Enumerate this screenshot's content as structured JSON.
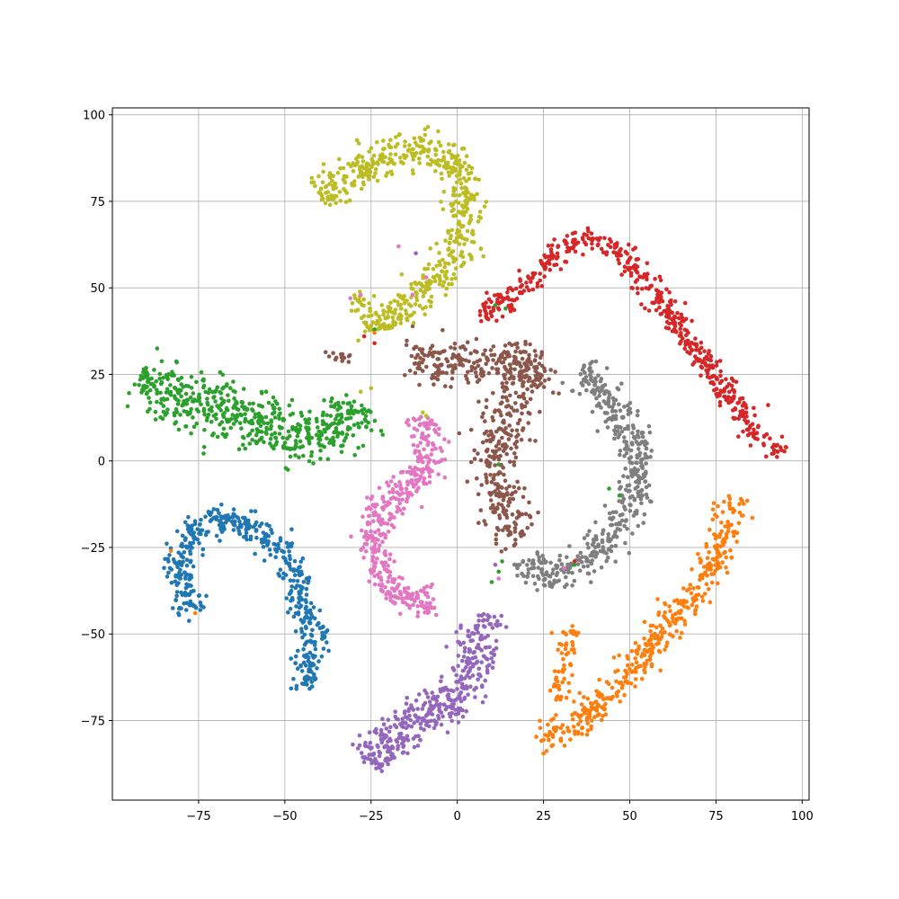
{
  "chart_data": {
    "type": "scatter",
    "title": "",
    "xlabel": "",
    "ylabel": "",
    "xlim": [
      -100,
      102
    ],
    "ylim": [
      -98,
      102
    ],
    "grid": true,
    "legend": "none",
    "x_ticks": [
      -75,
      -50,
      -25,
      0,
      25,
      50,
      75,
      100
    ],
    "y_ticks": [
      -75,
      -50,
      -25,
      0,
      25,
      50,
      75,
      100
    ],
    "x_tick_labels": [
      "−75",
      "−50",
      "−25",
      "0",
      "25",
      "50",
      "75",
      "100"
    ],
    "y_tick_labels": [
      "−75",
      "−50",
      "−25",
      "0",
      "25",
      "50",
      "75",
      "100"
    ],
    "series": [
      {
        "color": "#1f77b4",
        "spine": [
          [
            -76,
            -44
          ],
          [
            -80,
            -38
          ],
          [
            -81,
            -30
          ],
          [
            -79,
            -24
          ],
          [
            -74,
            -19
          ],
          [
            -67,
            -16
          ],
          [
            -60,
            -19
          ],
          [
            -53,
            -24
          ],
          [
            -48,
            -30
          ],
          [
            -45,
            -38
          ],
          [
            -43,
            -46
          ],
          [
            -42,
            -54
          ],
          [
            -43,
            -60
          ],
          [
            -44,
            -66
          ]
        ],
        "width": 5,
        "count": 480
      },
      {
        "color": "#ff7f0e",
        "spine": [
          [
            24,
            -81
          ],
          [
            30,
            -78
          ],
          [
            38,
            -73
          ],
          [
            45,
            -67
          ],
          [
            51,
            -60
          ],
          [
            56,
            -53
          ],
          [
            62,
            -46
          ],
          [
            68,
            -40
          ],
          [
            73,
            -33
          ],
          [
            76,
            -25
          ],
          [
            79,
            -18
          ],
          [
            81,
            -10
          ]
        ],
        "width": 5,
        "count": 420
      },
      {
        "color": "#ff7f0e",
        "spine": [
          [
            29,
            -69
          ],
          [
            31,
            -60
          ],
          [
            32,
            -53
          ],
          [
            33,
            -48
          ]
        ],
        "width": 3,
        "count": 60
      },
      {
        "color": "#2ca02c",
        "spine": [
          [
            -92,
            24
          ],
          [
            -86,
            20
          ],
          [
            -79,
            18
          ],
          [
            -72,
            16
          ],
          [
            -65,
            14
          ],
          [
            -58,
            11
          ],
          [
            -51,
            8
          ],
          [
            -44,
            6
          ],
          [
            -37,
            9
          ],
          [
            -31,
            12
          ],
          [
            -28,
            17
          ]
        ],
        "width": 9,
        "count": 560
      },
      {
        "color": "#d62728",
        "spine": [
          [
            6,
            43
          ],
          [
            12,
            45
          ],
          [
            19,
            50
          ],
          [
            25,
            56
          ],
          [
            31,
            62
          ],
          [
            38,
            65
          ],
          [
            44,
            62
          ],
          [
            50,
            58
          ],
          [
            56,
            50
          ],
          [
            62,
            42
          ],
          [
            68,
            34
          ],
          [
            74,
            25
          ],
          [
            80,
            17
          ],
          [
            85,
            10
          ],
          [
            90,
            5
          ],
          [
            94,
            2
          ]
        ],
        "width": 4,
        "count": 520
      },
      {
        "color": "#9467bd",
        "spine": [
          [
            -25,
            -88
          ],
          [
            -22,
            -82
          ],
          [
            -17,
            -78
          ],
          [
            -11,
            -75
          ],
          [
            -5,
            -72
          ],
          [
            0,
            -68
          ],
          [
            3,
            -62
          ],
          [
            6,
            -56
          ],
          [
            8,
            -50
          ],
          [
            7,
            -45
          ]
        ],
        "width": 7,
        "count": 420
      },
      {
        "color": "#8c564b",
        "spine": [
          [
            -14,
            28
          ],
          [
            -6,
            29
          ],
          [
            2,
            28
          ],
          [
            10,
            27
          ],
          [
            17,
            27
          ],
          [
            24,
            29
          ],
          [
            20,
            22
          ],
          [
            15,
            16
          ],
          [
            13,
            10
          ],
          [
            12,
            4
          ],
          [
            11,
            -3
          ],
          [
            12,
            -10
          ],
          [
            14,
            -17
          ],
          [
            18,
            -23
          ]
        ],
        "width": 8,
        "count": 560
      },
      {
        "color": "#8c564b",
        "spine": [
          [
            -37,
            31
          ],
          [
            -34,
            30
          ],
          [
            -32,
            29
          ]
        ],
        "width": 1.5,
        "count": 14
      },
      {
        "color": "#e377c2",
        "spine": [
          [
            -10,
            13
          ],
          [
            -9,
            5
          ],
          [
            -8,
            -1
          ],
          [
            -12,
            -6
          ],
          [
            -17,
            -9
          ],
          [
            -22,
            -14
          ],
          [
            -25,
            -20
          ],
          [
            -24,
            -26
          ],
          [
            -23,
            -32
          ],
          [
            -20,
            -37
          ],
          [
            -14,
            -40
          ],
          [
            -7,
            -41
          ]
        ],
        "width": 5,
        "count": 420
      },
      {
        "color": "#7f7f7f",
        "spine": [
          [
            36,
            26
          ],
          [
            41,
            22
          ],
          [
            45,
            16
          ],
          [
            49,
            10
          ],
          [
            52,
            3
          ],
          [
            52,
            -4
          ],
          [
            50,
            -12
          ],
          [
            46,
            -19
          ],
          [
            42,
            -24
          ],
          [
            37,
            -29
          ],
          [
            30,
            -33
          ],
          [
            22,
            -34
          ],
          [
            20,
            -28
          ]
        ],
        "width": 6,
        "count": 460
      },
      {
        "color": "#bcbd22",
        "spine": [
          [
            -40,
            76
          ],
          [
            -34,
            81
          ],
          [
            -28,
            85
          ],
          [
            -20,
            88
          ],
          [
            -12,
            90
          ],
          [
            -5,
            89
          ],
          [
            1,
            83
          ],
          [
            3,
            75
          ],
          [
            2,
            66
          ],
          [
            -1,
            58
          ],
          [
            -6,
            52
          ],
          [
            -12,
            47
          ],
          [
            -18,
            42
          ],
          [
            -22,
            38
          ],
          [
            -26,
            45
          ],
          [
            -28,
            48
          ]
        ],
        "width": 6,
        "count": 600
      }
    ],
    "outliers": [
      {
        "color": "#2ca02c",
        "points": [
          [
            11,
            45
          ],
          [
            14,
            44
          ],
          [
            12,
            -32
          ],
          [
            10,
            -35
          ],
          [
            13,
            -29
          ],
          [
            47,
            -10
          ],
          [
            44,
            -8
          ],
          [
            12,
            -1
          ],
          [
            -24,
            38
          ],
          [
            -27,
            15
          ],
          [
            34,
            -30
          ]
        ]
      },
      {
        "color": "#d62728",
        "points": [
          [
            -27,
            36
          ],
          [
            -24,
            34
          ],
          [
            34,
            -29
          ]
        ]
      },
      {
        "color": "#ff7f0e",
        "points": [
          [
            -83,
            -26
          ],
          [
            -76,
            -44
          ],
          [
            -24,
            37
          ]
        ]
      },
      {
        "color": "#e377c2",
        "points": [
          [
            -31,
            47
          ],
          [
            -28,
            48
          ],
          [
            -17,
            62
          ],
          [
            -9,
            53
          ],
          [
            12,
            -34
          ],
          [
            31,
            -31
          ],
          [
            -13,
            48
          ]
        ]
      },
      {
        "color": "#bcbd22",
        "points": [
          [
            -10,
            14
          ],
          [
            -9,
            13
          ],
          [
            -25,
            21
          ],
          [
            -28,
            20
          ]
        ]
      },
      {
        "color": "#9467bd",
        "points": [
          [
            11,
            -30
          ],
          [
            -12,
            60
          ]
        ]
      }
    ]
  }
}
